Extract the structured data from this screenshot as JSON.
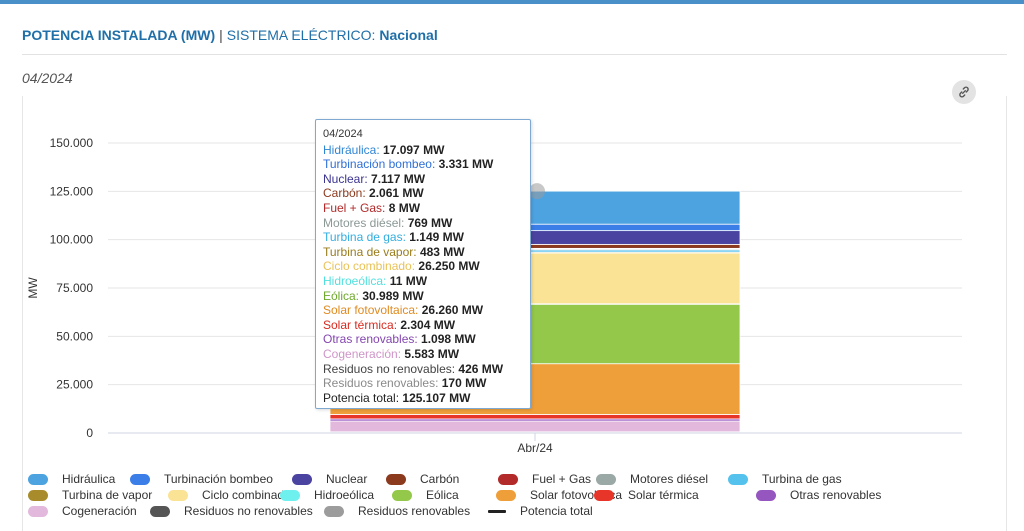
{
  "header": {
    "title": "POTENCIA INSTALADA (MW)",
    "separator": "|",
    "system_label": "SISTEMA ELÉCTRICO:",
    "system_value": "Nacional"
  },
  "period": "04/2024",
  "link_icon": "link-icon",
  "chart_data": {
    "type": "bar",
    "stacked": true,
    "categories": [
      "Abr/24"
    ],
    "ylabel": "MW",
    "ylim": [
      0,
      150000
    ],
    "yticks": [
      "0",
      "25.000",
      "50.000",
      "75.000",
      "100.000",
      "125.000",
      "150.000"
    ],
    "ytick_values": [
      0,
      25000,
      50000,
      75000,
      100000,
      125000,
      150000
    ],
    "grid": true,
    "legend_position": "bottom",
    "series": [
      {
        "name": "Hidráulica",
        "value": 17097,
        "color": "#4da3e0"
      },
      {
        "name": "Turbinación bombeo",
        "value": 3331,
        "color": "#3b7ee8"
      },
      {
        "name": "Nuclear",
        "value": 7117,
        "color": "#4a44a0"
      },
      {
        "name": "Carbón",
        "value": 2061,
        "color": "#8b3a1e"
      },
      {
        "name": "Fuel + Gas",
        "value": 8,
        "color": "#b22a2a"
      },
      {
        "name": "Motores diésel",
        "value": 769,
        "color": "#9aa8a6"
      },
      {
        "name": "Turbina de gas",
        "value": 1149,
        "color": "#55c2ee"
      },
      {
        "name": "Turbina de vapor",
        "value": 483,
        "color": "#a88c2c"
      },
      {
        "name": "Ciclo combinado",
        "value": 26250,
        "color": "#fae395"
      },
      {
        "name": "Hidroeólica",
        "value": 11,
        "color": "#6ef0ee"
      },
      {
        "name": "Eólica",
        "value": 30989,
        "color": "#94c84a"
      },
      {
        "name": "Solar fotovoltaica",
        "value": 26260,
        "color": "#ef9f3a"
      },
      {
        "name": "Solar térmica",
        "value": 2304,
        "color": "#e8352a"
      },
      {
        "name": "Otras renovables",
        "value": 1098,
        "color": "#9556c0"
      },
      {
        "name": "Cogeneración",
        "value": 5583,
        "color": "#e2b8dc"
      },
      {
        "name": "Residuos no renovables",
        "value": 426,
        "color": "#555555"
      },
      {
        "name": "Residuos renovables",
        "value": 170,
        "color": "#9c9c9c"
      }
    ],
    "total": {
      "name": "Potencia total",
      "value": 125107,
      "color": "#222222"
    }
  },
  "tooltip": {
    "date": "04/2024",
    "rows": [
      {
        "label": "Hidráulica:",
        "value": "17.097 MW",
        "color": "#2f86d4"
      },
      {
        "label": "Turbinación bombeo:",
        "value": "3.331 MW",
        "color": "#2f6fd8"
      },
      {
        "label": "Nuclear:",
        "value": "7.117 MW",
        "color": "#3a3490"
      },
      {
        "label": "Carbón:",
        "value": "2.061 MW",
        "color": "#8b3a1e"
      },
      {
        "label": "Fuel + Gas:",
        "value": "8 MW",
        "color": "#b22a2a"
      },
      {
        "label": "Motores diésel:",
        "value": "769 MW",
        "color": "#8a9896"
      },
      {
        "label": "Turbina de gas:",
        "value": "1.149 MW",
        "color": "#33aee0"
      },
      {
        "label": "Turbina de vapor:",
        "value": "483 MW",
        "color": "#9a7c1c"
      },
      {
        "label": "Ciclo combinado:",
        "value": "26.250 MW",
        "color": "#e9c258"
      },
      {
        "label": "Hidroeólica:",
        "value": "11 MW",
        "color": "#52e0de"
      },
      {
        "label": "Eólica:",
        "value": "30.989 MW",
        "color": "#6ea82c"
      },
      {
        "label": "Solar fotovoltaica:",
        "value": "26.260 MW",
        "color": "#e08a20"
      },
      {
        "label": "Solar térmica:",
        "value": "2.304 MW",
        "color": "#d82a20"
      },
      {
        "label": "Otras renovables:",
        "value": "1.098 MW",
        "color": "#8446b0"
      },
      {
        "label": "Cogeneración:",
        "value": "5.583 MW",
        "color": "#cf95c8"
      },
      {
        "label": "Residuos no renovables:",
        "value": "426 MW",
        "color": "#444444"
      },
      {
        "label": "Residuos renovables:",
        "value": "170 MW",
        "color": "#8a8a8a"
      },
      {
        "label": "Potencia total:",
        "value": "125.107 MW",
        "color": "#222222"
      }
    ]
  },
  "legend": {
    "rows": [
      [
        "Hidráulica",
        "Turbinación bombeo",
        "Nuclear",
        "Carbón",
        "Fuel + Gas",
        "Motores diésel",
        "Turbina de gas"
      ],
      [
        "Turbina de vapor",
        "Ciclo combinado",
        "Hidroeólica",
        "Eólica",
        "Solar fotovoltaica",
        "Solar térmica",
        "Otras renovables"
      ],
      [
        "Cogeneración",
        "Residuos no renovables",
        "Residuos renovables",
        "Potencia total"
      ]
    ]
  }
}
